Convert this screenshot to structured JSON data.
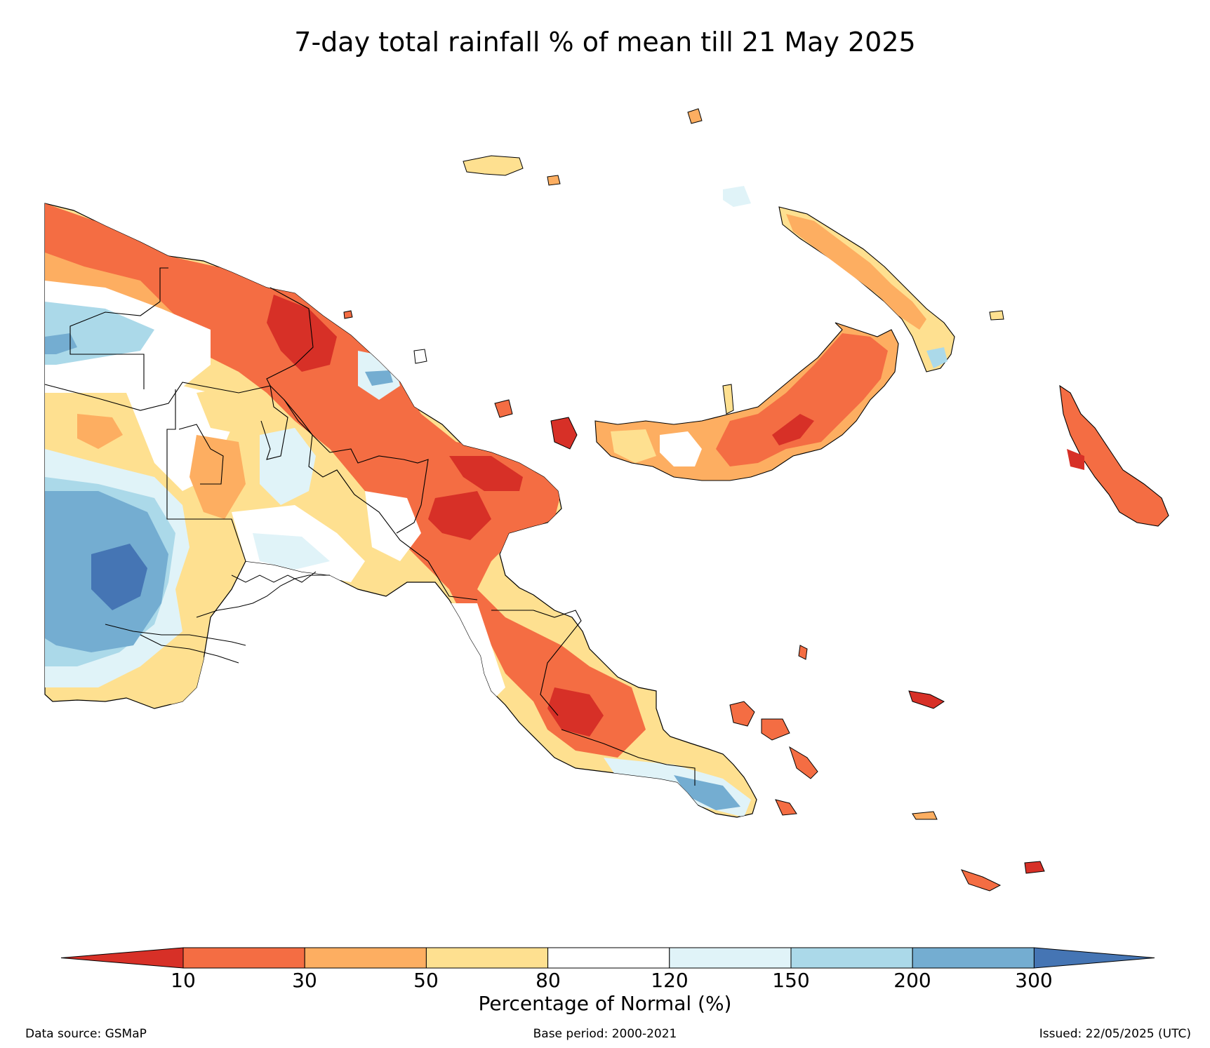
{
  "title": "7-day total rainfall % of mean till 21 May 2025",
  "colorbar": {
    "title": "Percentage of Normal (%)",
    "ticks": [
      "10",
      "30",
      "50",
      "80",
      "120",
      "150",
      "200",
      "300"
    ],
    "bins": [
      {
        "range": "<10",
        "color": "#d73027"
      },
      {
        "range": "10-30",
        "color": "#f46d43"
      },
      {
        "range": "30-50",
        "color": "#fdae61"
      },
      {
        "range": "50-80",
        "color": "#fee090"
      },
      {
        "range": "80-120",
        "color": "#ffffff"
      },
      {
        "range": "120-150",
        "color": "#e0f3f8"
      },
      {
        "range": "150-200",
        "color": "#abd9e9"
      },
      {
        "range": "200-300",
        "color": "#74add1"
      },
      {
        "range": ">300",
        "color": "#4575b4"
      }
    ]
  },
  "footer": {
    "source": "Data source: GSMaP",
    "base_period": "Base period: 2000-2021",
    "issued": "Issued: 22/05/2025 (UTC)"
  }
}
